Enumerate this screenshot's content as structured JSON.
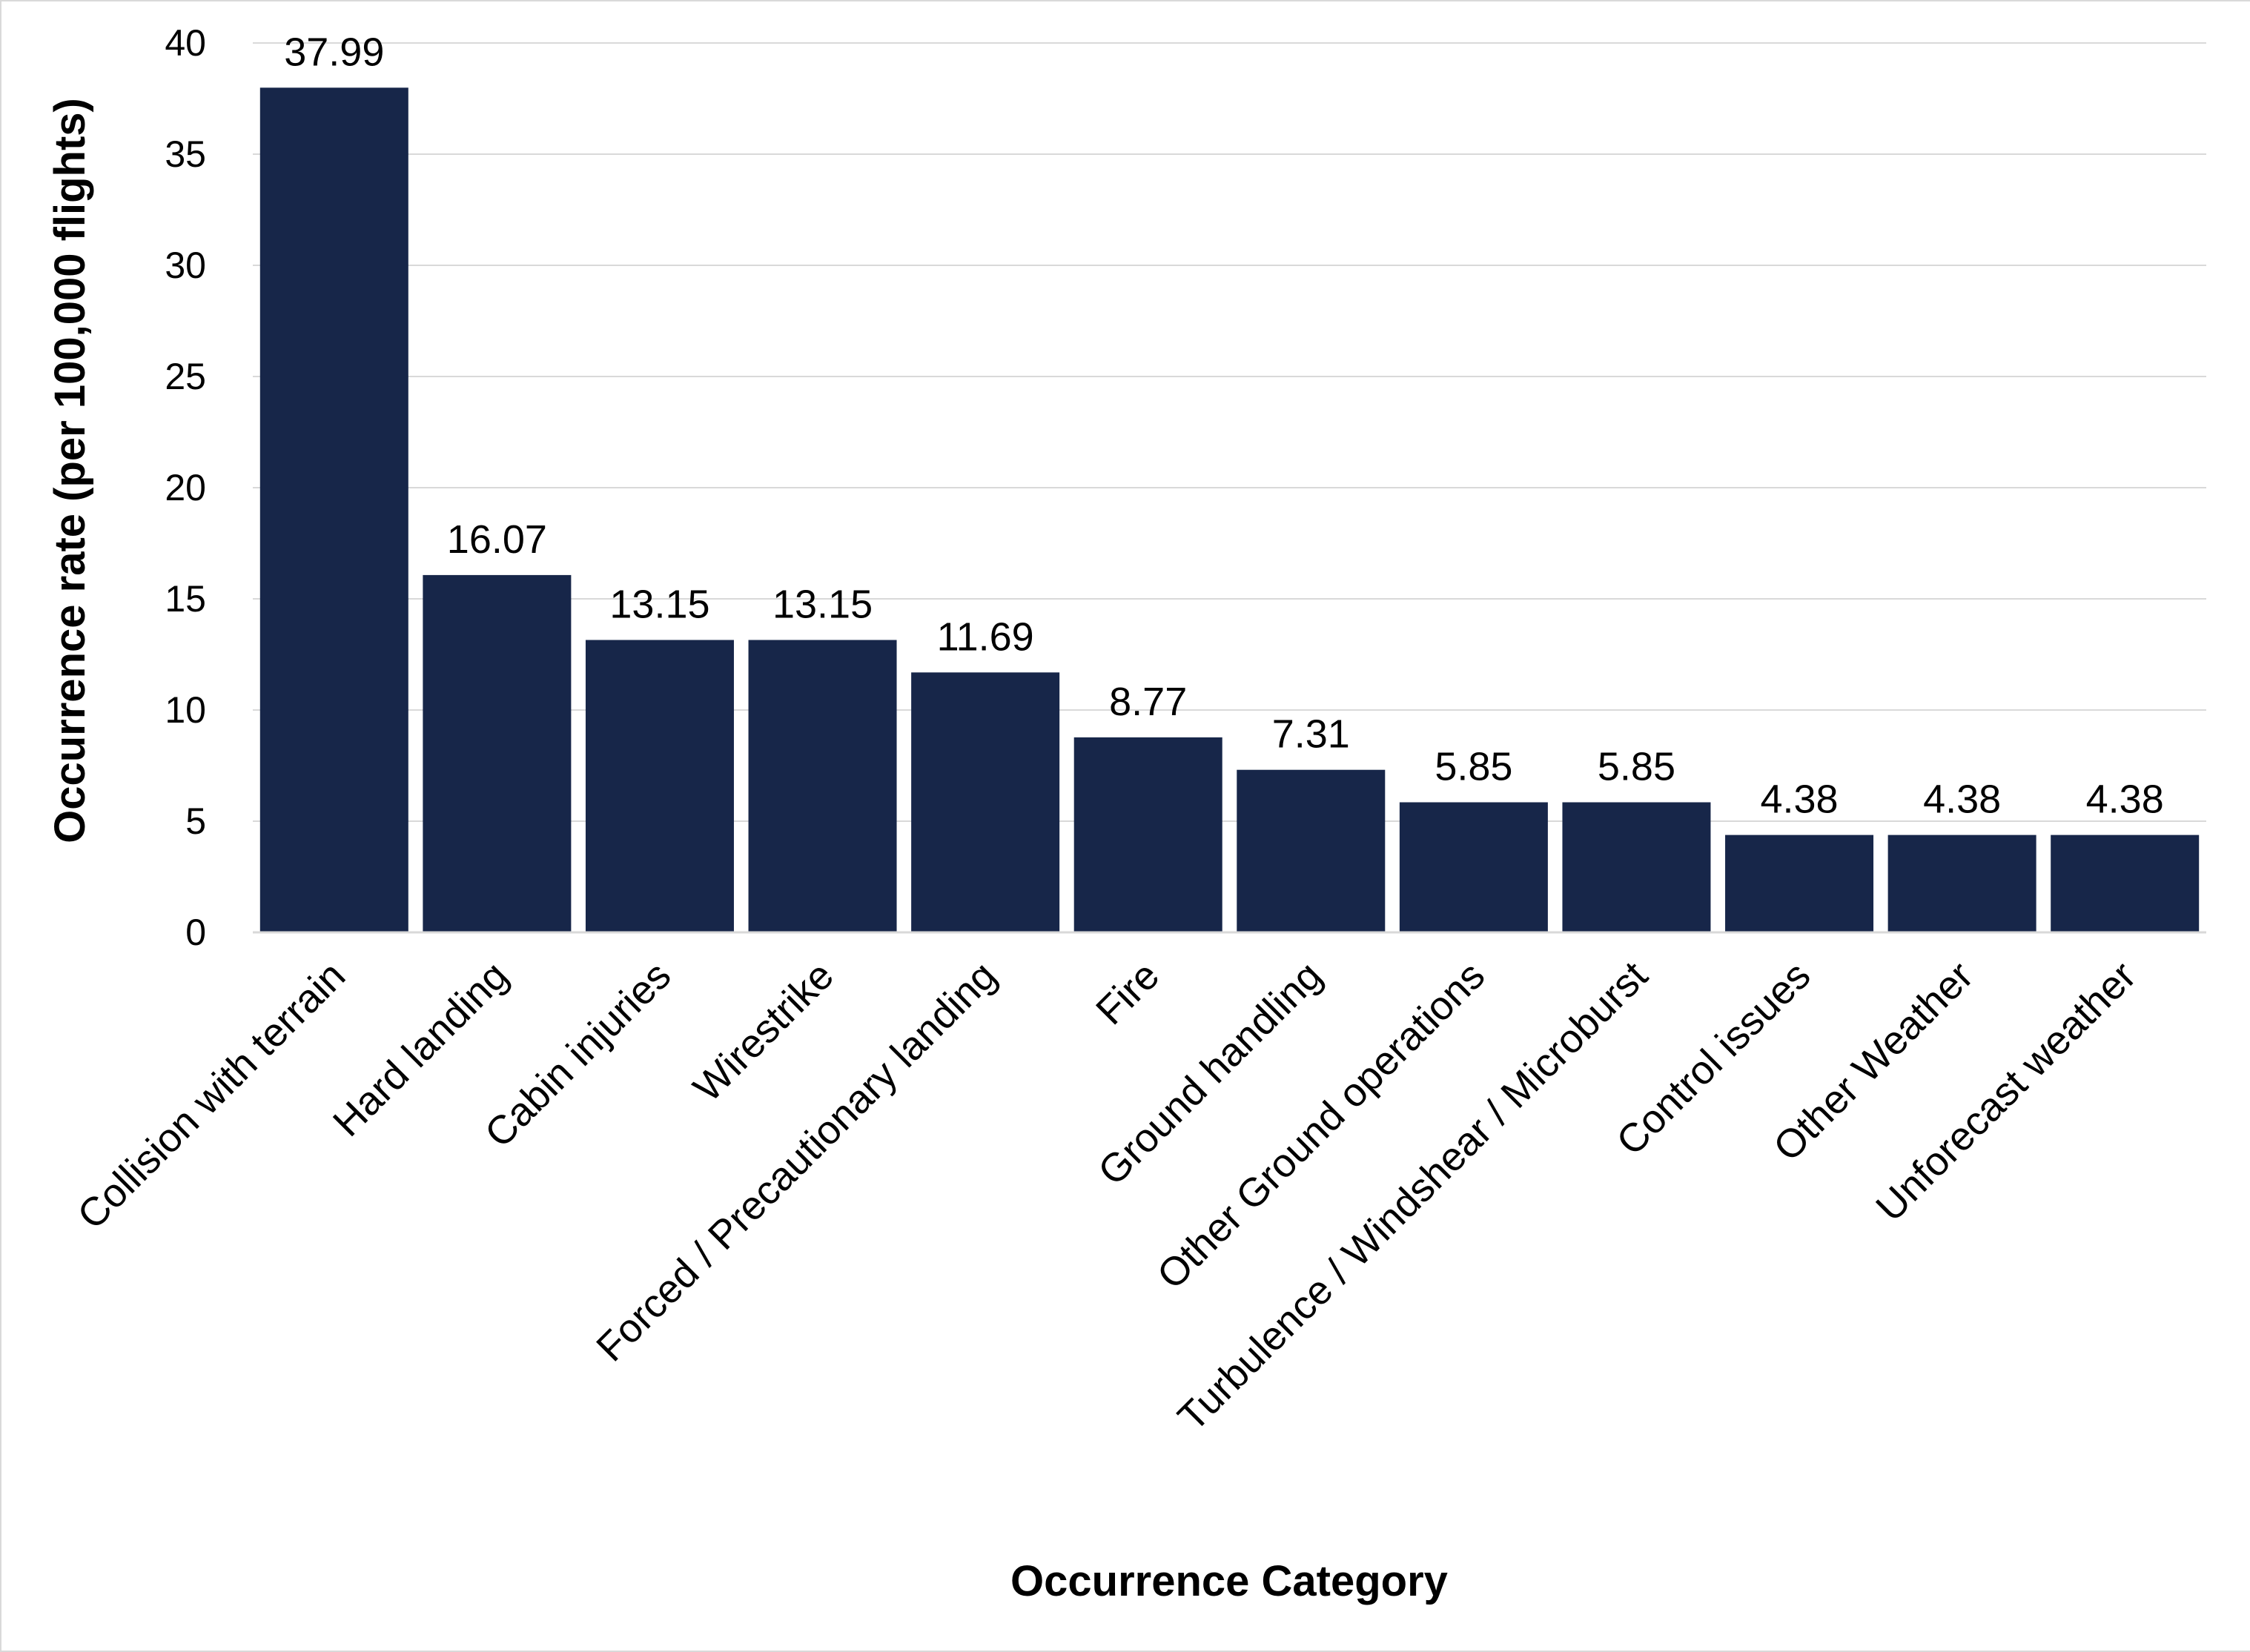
{
  "chart_data": {
    "type": "bar",
    "categories": [
      "Collision with terrain",
      "Hard landing",
      "Cabin injuries",
      "Wirestrike",
      "Forced / Precautionary landing",
      "Fire",
      "Ground handling",
      "Other Ground operations",
      "Turbulence / Windshear / Microburst",
      "Control issues",
      "Other Weather",
      "Unforecast weather"
    ],
    "values": [
      37.99,
      16.07,
      13.15,
      13.15,
      11.69,
      8.77,
      7.31,
      5.85,
      5.85,
      4.38,
      4.38,
      4.38
    ],
    "data_labels": [
      "37.99",
      "16.07",
      "13.15",
      "13.15",
      "11.69",
      "8.77",
      "7.31",
      "5.85",
      "5.85",
      "4.38",
      "4.38",
      "4.38"
    ],
    "xlabel": "Occurrence Category",
    "ylabel": "Occurrence rate (per 100,000 flights)",
    "ylim": [
      0,
      40
    ],
    "yticks": [
      "0",
      "5",
      "10",
      "15",
      "20",
      "25",
      "30",
      "35",
      "40"
    ],
    "grid": true,
    "bar_color": "#172649",
    "grid_color": "#d9d9d9"
  }
}
